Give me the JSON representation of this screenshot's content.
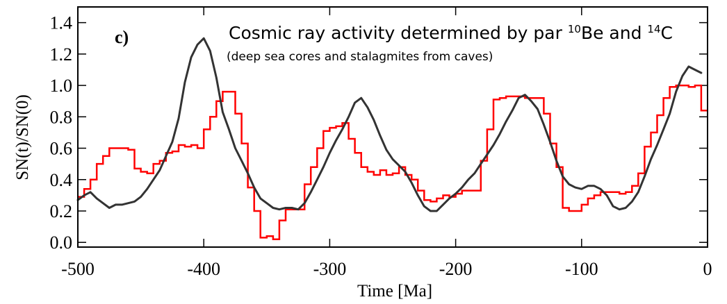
{
  "chart_data": {
    "type": "line",
    "panel_label": "c)",
    "annotation": {
      "prefix": "Cosmic ray activity determined by par ",
      "isotope1_mass": "10",
      "isotope1_symbol": "Be",
      "connector": " and ",
      "isotope2_mass": "14",
      "isotope2_symbol": "C",
      "subtitle": "(deep sea cores and stalagmites from caves)"
    },
    "xlabel": "Time [Ma]",
    "ylabel": "SN(t)/SN(0)",
    "xlim": [
      -500,
      0
    ],
    "ylim": [
      -0.03,
      1.5
    ],
    "x_ticks": [
      -500,
      -400,
      -300,
      -200,
      -100,
      0
    ],
    "y_ticks": [
      0.0,
      0.2,
      0.4,
      0.6,
      0.8,
      1.0,
      1.2,
      1.4
    ],
    "x_tick_labels": [
      "-500",
      "-400",
      "-300",
      "-200",
      "-100",
      "0"
    ],
    "y_tick_labels": [
      "0.0",
      "0.2",
      "0.4",
      "0.6",
      "0.8",
      "1.0",
      "1.2",
      "1.4"
    ],
    "series": [
      {
        "style": "step",
        "color": "#ff0000",
        "x": [
          -500,
          -495,
          -490,
          -485,
          -480,
          -475,
          -470,
          -465,
          -460,
          -455,
          -450,
          -445,
          -440,
          -435,
          -430,
          -425,
          -420,
          -415,
          -410,
          -405,
          -400,
          -395,
          -390,
          -385,
          -380,
          -375,
          -370,
          -365,
          -360,
          -355,
          -350,
          -345,
          -340,
          -335,
          -330,
          -325,
          -320,
          -315,
          -310,
          -305,
          -300,
          -295,
          -290,
          -285,
          -280,
          -275,
          -270,
          -265,
          -260,
          -255,
          -250,
          -245,
          -240,
          -235,
          -230,
          -225,
          -220,
          -215,
          -210,
          -205,
          -200,
          -195,
          -190,
          -185,
          -180,
          -175,
          -170,
          -165,
          -160,
          -155,
          -150,
          -145,
          -140,
          -135,
          -130,
          -125,
          -120,
          -115,
          -110,
          -105,
          -100,
          -95,
          -90,
          -85,
          -80,
          -75,
          -70,
          -65,
          -60,
          -55,
          -50,
          -45,
          -40,
          -35,
          -30,
          -25,
          -20,
          -15,
          -10,
          -5
        ],
        "y": [
          0.29,
          0.34,
          0.4,
          0.5,
          0.55,
          0.6,
          0.6,
          0.6,
          0.59,
          0.47,
          0.45,
          0.44,
          0.5,
          0.52,
          0.57,
          0.58,
          0.62,
          0.61,
          0.62,
          0.6,
          0.72,
          0.8,
          0.9,
          0.96,
          0.96,
          0.82,
          0.63,
          0.35,
          0.2,
          0.03,
          0.04,
          0.02,
          0.14,
          0.21,
          0.21,
          0.21,
          0.37,
          0.48,
          0.6,
          0.71,
          0.73,
          0.74,
          0.76,
          0.66,
          0.57,
          0.48,
          0.45,
          0.43,
          0.46,
          0.43,
          0.44,
          0.48,
          0.43,
          0.4,
          0.33,
          0.27,
          0.26,
          0.28,
          0.3,
          0.29,
          0.31,
          0.33,
          0.33,
          0.33,
          0.52,
          0.72,
          0.91,
          0.92,
          0.93,
          0.93,
          0.93,
          0.92,
          0.92,
          0.92,
          0.82,
          0.63,
          0.48,
          0.22,
          0.2,
          0.2,
          0.24,
          0.28,
          0.3,
          0.32,
          0.32,
          0.32,
          0.31,
          0.32,
          0.36,
          0.44,
          0.61,
          0.7,
          0.81,
          0.92,
          0.99,
          1.0,
          1.0,
          0.99,
          1.0,
          0.84
        ]
      },
      {
        "style": "line",
        "color": "#333333",
        "x": [
          -500,
          -495,
          -490,
          -485,
          -480,
          -475,
          -470,
          -465,
          -460,
          -455,
          -450,
          -445,
          -440,
          -435,
          -430,
          -425,
          -420,
          -415,
          -410,
          -405,
          -400,
          -395,
          -390,
          -385,
          -380,
          -375,
          -370,
          -365,
          -360,
          -355,
          -350,
          -345,
          -340,
          -335,
          -330,
          -325,
          -320,
          -315,
          -310,
          -305,
          -300,
          -295,
          -290,
          -285,
          -280,
          -275,
          -270,
          -265,
          -260,
          -255,
          -250,
          -245,
          -240,
          -235,
          -230,
          -225,
          -220,
          -215,
          -210,
          -205,
          -200,
          -195,
          -190,
          -185,
          -180,
          -175,
          -170,
          -165,
          -160,
          -155,
          -150,
          -145,
          -140,
          -135,
          -130,
          -125,
          -120,
          -115,
          -110,
          -105,
          -100,
          -95,
          -90,
          -85,
          -80,
          -75,
          -70,
          -65,
          -60,
          -55,
          -50,
          -45,
          -40,
          -35,
          -30,
          -25,
          -20,
          -15,
          -10,
          -5
        ],
        "y": [
          0.27,
          0.3,
          0.32,
          0.28,
          0.25,
          0.22,
          0.24,
          0.24,
          0.25,
          0.26,
          0.29,
          0.34,
          0.4,
          0.46,
          0.55,
          0.64,
          0.79,
          1.02,
          1.18,
          1.26,
          1.3,
          1.22,
          1.05,
          0.83,
          0.72,
          0.6,
          0.52,
          0.44,
          0.35,
          0.28,
          0.25,
          0.22,
          0.21,
          0.22,
          0.22,
          0.21,
          0.25,
          0.32,
          0.4,
          0.48,
          0.57,
          0.65,
          0.72,
          0.8,
          0.89,
          0.92,
          0.86,
          0.78,
          0.68,
          0.59,
          0.53,
          0.49,
          0.45,
          0.38,
          0.3,
          0.23,
          0.2,
          0.2,
          0.24,
          0.28,
          0.31,
          0.35,
          0.4,
          0.44,
          0.5,
          0.56,
          0.62,
          0.69,
          0.77,
          0.84,
          0.92,
          0.94,
          0.9,
          0.85,
          0.75,
          0.64,
          0.52,
          0.42,
          0.37,
          0.35,
          0.34,
          0.36,
          0.36,
          0.34,
          0.3,
          0.23,
          0.21,
          0.22,
          0.26,
          0.32,
          0.42,
          0.53,
          0.62,
          0.72,
          0.82,
          0.96,
          1.06,
          1.12,
          1.1,
          1.08
        ]
      }
    ]
  }
}
